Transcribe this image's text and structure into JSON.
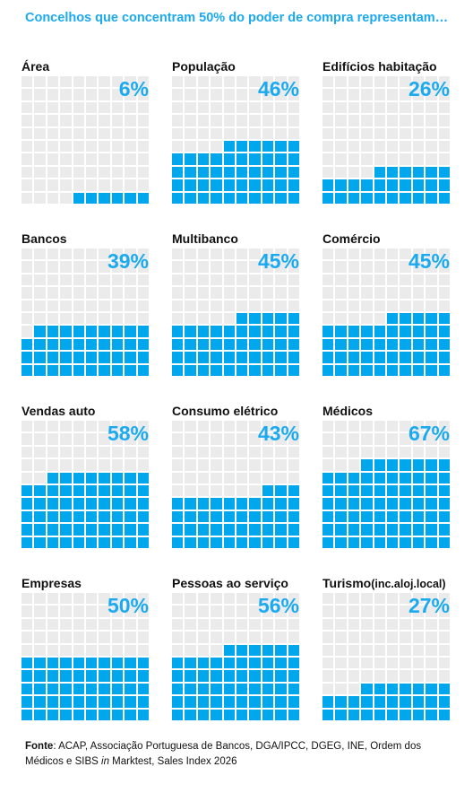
{
  "title": "Concelhos que concentram 50% do poder de compra representam…",
  "chart_data": {
    "type": "waffle",
    "title": "Concelhos que concentram 50% do poder de compra representam…",
    "grid": "10x10",
    "categories": [
      "Área",
      "População",
      "Edifícios habitação",
      "Bancos",
      "Multibanco",
      "Comércio",
      "Vendas auto",
      "Consumo elétrico",
      "Médicos",
      "Empresas",
      "Pessoas ao serviço",
      "Turismo(inc.aloj.local)"
    ],
    "values": [
      6,
      46,
      26,
      39,
      45,
      45,
      58,
      43,
      67,
      50,
      56,
      27
    ],
    "value_labels": [
      "6%",
      "46%",
      "26%",
      "39%",
      "45%",
      "45%",
      "58%",
      "43%",
      "67%",
      "50%",
      "56%",
      "27%"
    ],
    "colors": {
      "filled": "#00a7ec",
      "empty": "#ebebeb",
      "accent_text": "#1ba9f0"
    }
  },
  "panels": [
    {
      "label": "Área",
      "value": 6,
      "pct": "6%"
    },
    {
      "label": "População",
      "value": 46,
      "pct": "46%"
    },
    {
      "label": "Edifícios habitação",
      "value": 26,
      "pct": "26%"
    },
    {
      "label": "Bancos",
      "value": 39,
      "pct": "39%"
    },
    {
      "label": "Multibanco",
      "value": 45,
      "pct": "45%"
    },
    {
      "label": "Comércio",
      "value": 45,
      "pct": "45%"
    },
    {
      "label": "Vendas auto",
      "value": 58,
      "pct": "58%"
    },
    {
      "label": "Consumo elétrico",
      "value": 43,
      "pct": "43%"
    },
    {
      "label": "Médicos",
      "value": 67,
      "pct": "67%"
    },
    {
      "label": "Empresas",
      "value": 50,
      "pct": "50%"
    },
    {
      "label": "Pessoas ao serviço",
      "value": 56,
      "pct": "56%"
    },
    {
      "label": "Turismo",
      "label_suffix": "(inc.aloj.local)",
      "value": 27,
      "pct": "27%"
    }
  ],
  "footer": {
    "source_label": "Fonte",
    "text_1": ": ACAP, Associação Portuguesa de Bancos, DGA/IPCC,  DGEG, INE, Ordem dos Médicos e SIBS ",
    "text_italic": "in",
    "text_2": " Marktest, Sales Index 2026"
  }
}
